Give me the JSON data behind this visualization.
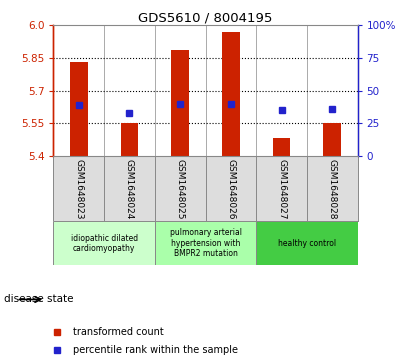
{
  "title": "GDS5610 / 8004195",
  "samples": [
    "GSM1648023",
    "GSM1648024",
    "GSM1648025",
    "GSM1648026",
    "GSM1648027",
    "GSM1648028"
  ],
  "bar_tops": [
    5.832,
    5.553,
    5.888,
    5.972,
    5.482,
    5.553
  ],
  "bar_bottom": 5.4,
  "blue_y": [
    5.633,
    5.6,
    5.64,
    5.638,
    5.612,
    5.618
  ],
  "ylim": [
    5.4,
    6.0
  ],
  "y_ticks_left": [
    5.4,
    5.55,
    5.7,
    5.85,
    6.0
  ],
  "y_ticks_right": [
    0,
    25,
    50,
    75,
    100
  ],
  "dotted_lines": [
    5.55,
    5.7,
    5.85
  ],
  "bar_color": "#CC2200",
  "blue_color": "#2222CC",
  "bar_width": 0.35,
  "groups": [
    {
      "label": "idiopathic dilated\ncardiomyopathy",
      "color": "#CCFFCC",
      "samples": [
        0,
        1
      ]
    },
    {
      "label": "pulmonary arterial\nhypertension with\nBMPR2 mutation",
      "color": "#AAFFAA",
      "samples": [
        2,
        3
      ]
    },
    {
      "label": "healthy control",
      "color": "#44CC44",
      "samples": [
        4,
        5
      ]
    }
  ],
  "legend_items": [
    {
      "label": "transformed count",
      "color": "#CC2200"
    },
    {
      "label": "percentile rank within the sample",
      "color": "#2222CC"
    }
  ],
  "disease_state_label": "disease state",
  "bg_color": "#DDDDDD",
  "plot_bg": "#FFFFFF"
}
